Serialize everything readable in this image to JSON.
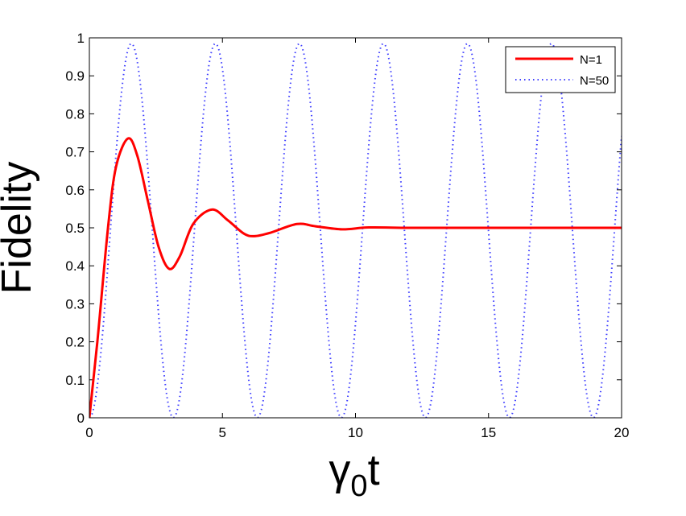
{
  "chart_data": {
    "type": "line",
    "title": "",
    "xlabel": "γ0t",
    "xlabel_main": "γ",
    "xlabel_sub": "0",
    "xlabel_tail": "t",
    "ylabel": "Fidelity",
    "xlim": [
      0,
      20
    ],
    "ylim": [
      0,
      1
    ],
    "x_ticks": [
      "0",
      "5",
      "10",
      "15",
      "20"
    ],
    "y_ticks": [
      "0",
      "0.1",
      "0.2",
      "0.3",
      "0.4",
      "0.5",
      "0.6",
      "0.7",
      "0.8",
      "0.9",
      "1"
    ],
    "grid": false,
    "legend_position": "top-right",
    "series": [
      {
        "name": "N=1",
        "color": "#ff0000",
        "style": "solid",
        "points": [
          [
            0,
            0
          ],
          [
            0.3,
            0.2
          ],
          [
            0.7,
            0.5
          ],
          [
            1.0,
            0.66
          ],
          [
            1.45,
            0.735
          ],
          [
            1.8,
            0.69
          ],
          [
            2.2,
            0.57
          ],
          [
            2.6,
            0.45
          ],
          [
            3.0,
            0.392
          ],
          [
            3.4,
            0.425
          ],
          [
            3.9,
            0.51
          ],
          [
            4.6,
            0.548
          ],
          [
            5.2,
            0.52
          ],
          [
            5.8,
            0.485
          ],
          [
            6.2,
            0.478
          ],
          [
            6.8,
            0.487
          ],
          [
            7.8,
            0.51
          ],
          [
            8.5,
            0.504
          ],
          [
            9.5,
            0.496
          ],
          [
            10.5,
            0.501
          ],
          [
            12,
            0.5
          ],
          [
            14,
            0.5
          ],
          [
            16,
            0.5
          ],
          [
            18,
            0.5
          ],
          [
            20,
            0.5
          ]
        ]
      },
      {
        "name": "N=50",
        "color": "#3f3fff",
        "style": "dotted",
        "model": {
          "form": "amplitude*(1 - cos(omega*x))/2",
          "amplitude": 0.985,
          "omega": 1.99,
          "x_start": 0,
          "x_end": 20,
          "samples": 600
        }
      }
    ]
  }
}
